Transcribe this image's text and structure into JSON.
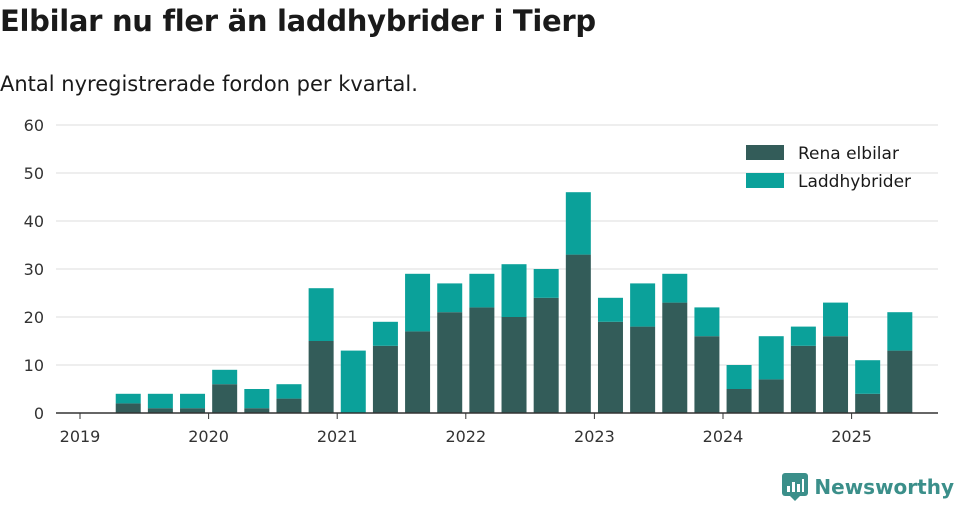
{
  "title": "Elbilar nu fler än laddhybrider i Tierp",
  "subtitle": "Antal nyregistrerade fordon per kvartal.",
  "brand": {
    "name": "Newsworthy",
    "icon": "newsworthy-logo-icon"
  },
  "colors": {
    "elbilar": "#335c59",
    "laddhybrider": "#0ba19a",
    "grid": "#dddddd",
    "axis": "#333333"
  },
  "chart_data": {
    "type": "bar",
    "stacked": true,
    "x_tick_labels": [
      "2019",
      "2020",
      "2021",
      "2022",
      "2023",
      "2024",
      "2025"
    ],
    "categories": [
      "2019 Q2",
      "2019 Q3",
      "2019 Q4",
      "2020 Q1",
      "2020 Q2",
      "2020 Q3",
      "2020 Q4",
      "2021 Q1",
      "2021 Q2",
      "2021 Q3",
      "2021 Q4",
      "2022 Q1",
      "2022 Q2",
      "2022 Q3",
      "2022 Q4",
      "2023 Q1",
      "2023 Q2",
      "2023 Q3",
      "2023 Q4",
      "2024 Q1",
      "2024 Q2",
      "2024 Q3",
      "2024 Q4",
      "2025 Q1",
      "2025 Q2"
    ],
    "series": [
      {
        "name": "Rena elbilar",
        "color": "#335c59",
        "values": [
          2,
          1,
          1,
          6,
          1,
          3,
          15,
          0,
          14,
          17,
          21,
          22,
          20,
          24,
          33,
          19,
          18,
          23,
          16,
          5,
          7,
          14,
          16,
          4,
          13
        ]
      },
      {
        "name": "Laddhybrider",
        "color": "#0ba19a",
        "values": [
          2,
          3,
          3,
          3,
          4,
          3,
          11,
          13,
          5,
          12,
          6,
          7,
          11,
          6,
          13,
          5,
          9,
          6,
          6,
          5,
          9,
          4,
          7,
          7,
          8
        ]
      }
    ],
    "ylim": [
      0,
      60
    ],
    "y_ticks": [
      0,
      10,
      20,
      30,
      40,
      50,
      60
    ],
    "grid": true,
    "legend_position": "top-right"
  }
}
